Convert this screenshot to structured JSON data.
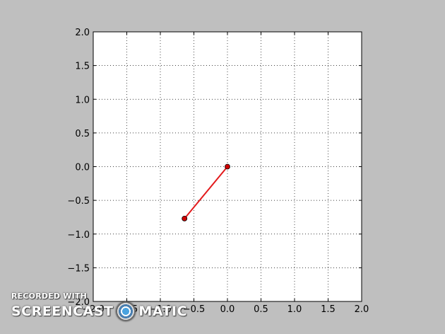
{
  "chart_data": {
    "type": "line",
    "title": "",
    "xlabel": "",
    "ylabel": "",
    "xlim": [
      -2.0,
      2.0
    ],
    "ylim": [
      -2.0,
      2.0
    ],
    "grid": true,
    "xticks": [
      "−2.0",
      "−1.5",
      "−1.0",
      "−0.5",
      "0.0",
      "0.5",
      "1.0",
      "1.5",
      "2.0"
    ],
    "yticks": [
      "2.0",
      "1.5",
      "1.0",
      "0.5",
      "0.0",
      "−0.5",
      "−1.0",
      "−1.5",
      "−2.0"
    ],
    "xtick_values": [
      -2.0,
      -1.5,
      -1.0,
      -0.5,
      0.0,
      0.5,
      1.0,
      1.5,
      2.0
    ],
    "ytick_values": [
      2.0,
      1.5,
      1.0,
      0.5,
      0.0,
      -0.5,
      -1.0,
      -1.5,
      -2.0
    ],
    "series": [
      {
        "x": [
          0.0,
          -0.64
        ],
        "y": [
          0.0,
          -0.77
        ],
        "color": "#e31a1c",
        "marker": "o"
      }
    ]
  },
  "watermark": {
    "top": "RECORDED WITH",
    "left": "SCREENCAST",
    "right": "MATIC"
  },
  "colors": {
    "background": "#bfbfbf",
    "axes": "#ffffff",
    "line": "#e31a1c"
  }
}
